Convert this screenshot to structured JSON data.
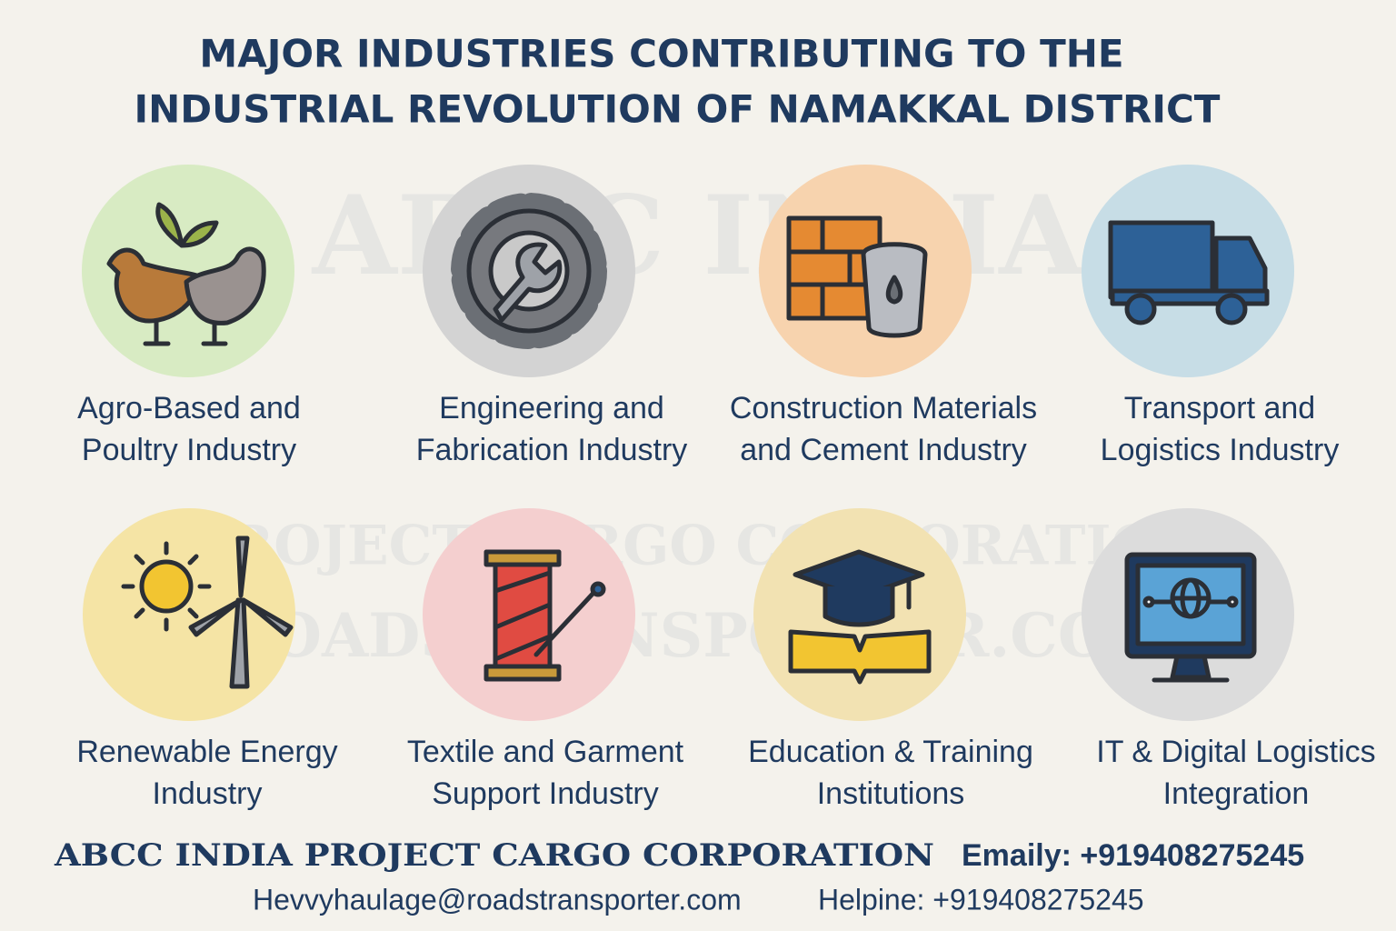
{
  "title": [
    "MAJOR INDUSTRIES CONTRIBUTING TO THE",
    "INDUSTRIAL REVOLUTION OF NAMAKKAL DISTRICT"
  ],
  "watermark": [
    "ABCC INDIA",
    "PROJECT CARGO CORPORATION",
    "ROADSTRANSPORTER.COM"
  ],
  "items": [
    {
      "label": [
        "Agro-Based and",
        "Poultry Industry"
      ]
    },
    {
      "label": [
        "Engineering and",
        "Fabrication Industry"
      ]
    },
    {
      "label": [
        "Construction Materials",
        "and Cement Industry"
      ]
    },
    {
      "label": [
        "Transport and",
        "Logistics Industry"
      ]
    },
    {
      "label": [
        "Renewable Energy",
        "Industry"
      ]
    },
    {
      "label": [
        "Textile and Garment",
        "Support Industry"
      ]
    },
    {
      "label": [
        "Education & Training",
        "Institutions"
      ]
    },
    {
      "label": [
        "IT & Digital Logistics",
        "Integration"
      ]
    }
  ],
  "footer": {
    "company": "ABCC INDIA PROJECT CARGO CORPORATION",
    "phone": "Emaily: +919408275245",
    "email": "Hevvyhaulage@roadstransporter.com",
    "helpline": "Helpine: +919408275245"
  }
}
